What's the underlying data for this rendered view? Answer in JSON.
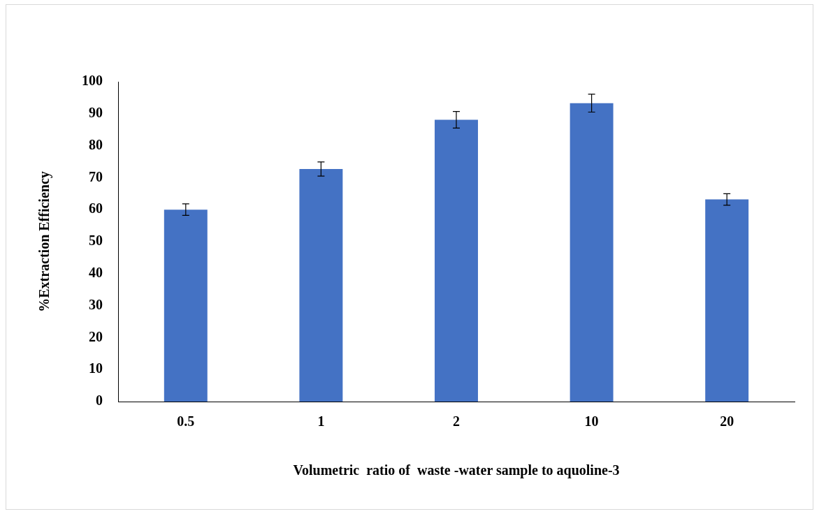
{
  "chart_data": {
    "type": "bar",
    "xlabel": "Volumetric  ratio of  waste -water sample to aquoline-3",
    "ylabel": "%Extraction Efficiency",
    "categories": [
      "0.5",
      "1",
      "2",
      "10",
      "20"
    ],
    "values": [
      60,
      72.7,
      88.1,
      93.3,
      63.2
    ],
    "errors": [
      1.8,
      2.2,
      2.6,
      2.8,
      1.8
    ],
    "color": "#4472c4",
    "ylim": [
      0,
      100
    ],
    "yticks": [
      0,
      10,
      20,
      30,
      40,
      50,
      60,
      70,
      80,
      90,
      100
    ],
    "grid": false,
    "legend": false
  }
}
